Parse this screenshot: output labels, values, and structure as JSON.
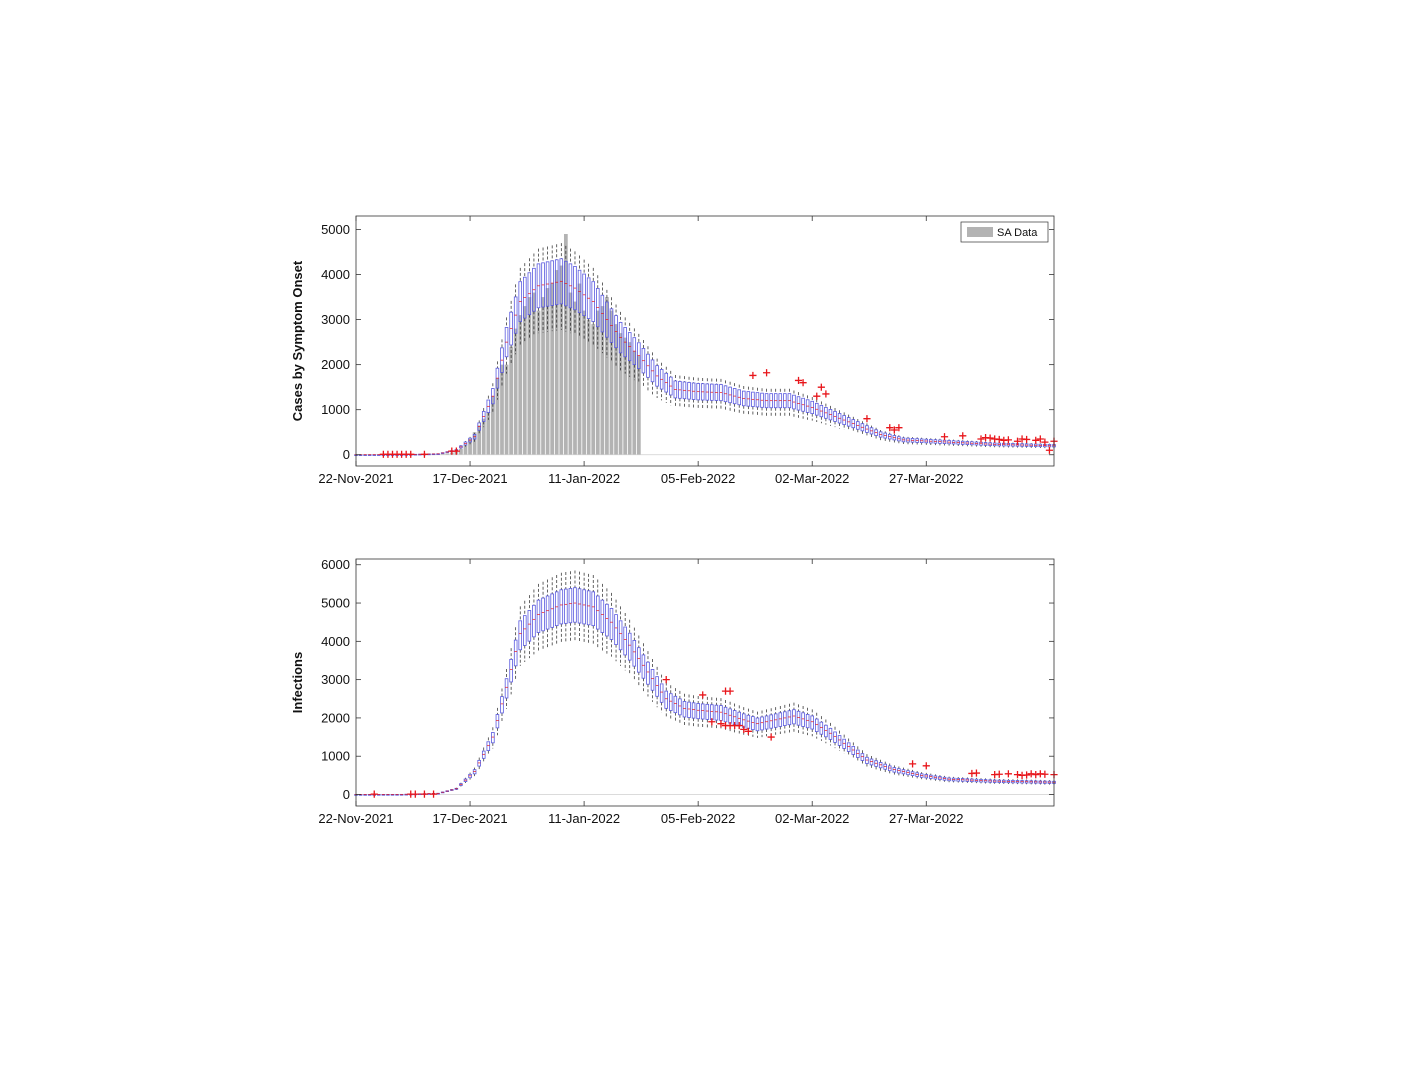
{
  "chart_data": [
    {
      "type": "boxplot",
      "ylabel": "Cases by Symptom Onset",
      "xlabel": "",
      "title": "",
      "x_tick_labels": [
        "22-Nov-2021",
        "17-Dec-2021",
        "11-Jan-2022",
        "05-Feb-2022",
        "02-Mar-2022",
        "27-Mar-2022"
      ],
      "x_tick_days": [
        0,
        25,
        50,
        75,
        100,
        125
      ],
      "xlim_days": [
        0,
        153
      ],
      "ylim": [
        -250,
        5300
      ],
      "y_ticks": [
        0,
        1000,
        2000,
        3000,
        4000,
        5000
      ],
      "legend": {
        "position": "top-right",
        "entries": [
          "SA Data"
        ]
      },
      "colors": {
        "box": "#5a5adf",
        "whisker": "#222222",
        "outlier": "#e8161b",
        "bars": "#b3b3b3"
      },
      "median_knots": [
        [
          0,
          0
        ],
        [
          10,
          2
        ],
        [
          18,
          20
        ],
        [
          22,
          100
        ],
        [
          26,
          400
        ],
        [
          30,
          1300
        ],
        [
          33,
          2500
        ],
        [
          36,
          3400
        ],
        [
          40,
          3750
        ],
        [
          45,
          3850
        ],
        [
          48,
          3700
        ],
        [
          52,
          3400
        ],
        [
          55,
          3000
        ],
        [
          58,
          2600
        ],
        [
          62,
          2200
        ],
        [
          66,
          1750
        ],
        [
          70,
          1450
        ],
        [
          75,
          1400
        ],
        [
          80,
          1380
        ],
        [
          85,
          1250
        ],
        [
          90,
          1200
        ],
        [
          95,
          1200
        ],
        [
          100,
          1050
        ],
        [
          105,
          850
        ],
        [
          110,
          650
        ],
        [
          115,
          450
        ],
        [
          120,
          330
        ],
        [
          130,
          280
        ],
        [
          140,
          230
        ],
        [
          153,
          200
        ]
      ],
      "spread_ratios": {
        "box_low": 0.87,
        "box_high": 1.13,
        "whisker_low": 0.72,
        "whisker_high": 1.22
      },
      "outliers": [
        [
          6,
          10
        ],
        [
          7,
          10
        ],
        [
          8,
          10
        ],
        [
          9,
          10
        ],
        [
          10,
          10
        ],
        [
          11,
          10
        ],
        [
          12,
          10
        ],
        [
          15,
          10
        ],
        [
          21,
          80
        ],
        [
          22,
          80
        ],
        [
          87,
          1760
        ],
        [
          90,
          1820
        ],
        [
          97,
          1650
        ],
        [
          98,
          1600
        ],
        [
          101,
          1300
        ],
        [
          102,
          1500
        ],
        [
          103,
          1350
        ],
        [
          112,
          800
        ],
        [
          117,
          600
        ],
        [
          118,
          550
        ],
        [
          119,
          600
        ],
        [
          129,
          400
        ],
        [
          133,
          420
        ],
        [
          137,
          350
        ],
        [
          138,
          380
        ],
        [
          139,
          370
        ],
        [
          140,
          350
        ],
        [
          141,
          340
        ],
        [
          142,
          320
        ],
        [
          143,
          330
        ],
        [
          145,
          300
        ],
        [
          146,
          350
        ],
        [
          147,
          340
        ],
        [
          149,
          320
        ],
        [
          150,
          350
        ],
        [
          151,
          280
        ],
        [
          152,
          100
        ],
        [
          153,
          300
        ]
      ],
      "bars_range": [
        15,
        62
      ],
      "bars": [
        5,
        6,
        8,
        12,
        18,
        30,
        50,
        80,
        130,
        220,
        350,
        500,
        650,
        800,
        950,
        1300,
        1700,
        2000,
        2000,
        2400,
        2800,
        3100,
        3300,
        3500,
        3600,
        3200,
        3500,
        3700,
        3800,
        4100,
        4200,
        4900,
        3600,
        3400,
        3800,
        3200,
        3000,
        2900,
        3200,
        3300,
        3500,
        3200,
        2900,
        2700,
        2600,
        2500,
        2300,
        2200
      ]
    },
    {
      "type": "boxplot",
      "ylabel": "Infections",
      "xlabel": "",
      "title": "",
      "x_tick_labels": [
        "22-Nov-2021",
        "17-Dec-2021",
        "11-Jan-2022",
        "05-Feb-2022",
        "02-Mar-2022",
        "27-Mar-2022"
      ],
      "x_tick_days": [
        0,
        25,
        50,
        75,
        100,
        125
      ],
      "xlim_days": [
        0,
        153
      ],
      "ylim": [
        -300,
        6150
      ],
      "y_ticks": [
        0,
        1000,
        2000,
        3000,
        4000,
        5000,
        6000
      ],
      "colors": {
        "box": "#5a5adf",
        "whisker": "#222222",
        "outlier": "#e8161b"
      },
      "median_knots": [
        [
          0,
          0
        ],
        [
          10,
          3
        ],
        [
          18,
          30
        ],
        [
          22,
          150
        ],
        [
          26,
          600
        ],
        [
          30,
          1500
        ],
        [
          33,
          2800
        ],
        [
          36,
          4200
        ],
        [
          40,
          4700
        ],
        [
          45,
          4950
        ],
        [
          48,
          5000
        ],
        [
          52,
          4900
        ],
        [
          56,
          4500
        ],
        [
          60,
          3900
        ],
        [
          64,
          3200
        ],
        [
          68,
          2500
        ],
        [
          72,
          2250
        ],
        [
          75,
          2200
        ],
        [
          80,
          2150
        ],
        [
          85,
          1950
        ],
        [
          88,
          1850
        ],
        [
          92,
          1950
        ],
        [
          96,
          2050
        ],
        [
          100,
          1900
        ],
        [
          104,
          1600
        ],
        [
          108,
          1250
        ],
        [
          112,
          900
        ],
        [
          118,
          650
        ],
        [
          124,
          500
        ],
        [
          130,
          400
        ],
        [
          140,
          350
        ],
        [
          153,
          320
        ]
      ],
      "spread_ratios": {
        "box_low": 0.9,
        "box_high": 1.08,
        "whisker_low": 0.8,
        "whisker_high": 1.17
      },
      "outliers": [
        [
          4,
          10
        ],
        [
          12,
          10
        ],
        [
          13,
          10
        ],
        [
          15,
          10
        ],
        [
          17,
          10
        ],
        [
          68,
          3000
        ],
        [
          76,
          2600
        ],
        [
          78,
          1900
        ],
        [
          80,
          1850
        ],
        [
          81,
          1800
        ],
        [
          82,
          1800
        ],
        [
          83,
          1800
        ],
        [
          84,
          1800
        ],
        [
          85,
          1700
        ],
        [
          86,
          1650
        ],
        [
          81,
          2700
        ],
        [
          82,
          2700
        ],
        [
          91,
          1500
        ],
        [
          122,
          800
        ],
        [
          125,
          750
        ],
        [
          135,
          550
        ],
        [
          136,
          560
        ],
        [
          140,
          520
        ],
        [
          141,
          530
        ],
        [
          143,
          540
        ],
        [
          145,
          520
        ],
        [
          146,
          500
        ],
        [
          147,
          510
        ],
        [
          148,
          540
        ],
        [
          149,
          520
        ],
        [
          150,
          540
        ],
        [
          151,
          530
        ],
        [
          153,
          520
        ]
      ]
    }
  ]
}
